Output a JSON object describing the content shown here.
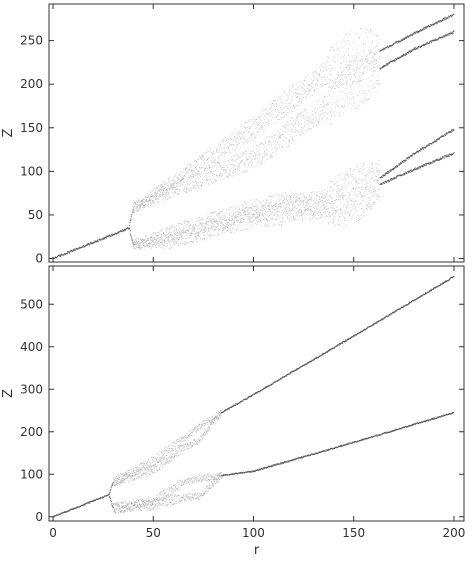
{
  "chart_data": [
    {
      "type": "scatter",
      "title": "",
      "xlabel": "",
      "ylabel": "Z",
      "xlim": [
        -2,
        205
      ],
      "ylim": [
        -4,
        292
      ],
      "x_ticks": [],
      "y_ticks": [
        0,
        50,
        100,
        150,
        200,
        250
      ],
      "y_tick_labels": [
        "0",
        "50",
        "100",
        "150",
        "200",
        "250"
      ],
      "colors": {
        "point": "#555555",
        "cloud": "#8a8a8a",
        "frame": "#333333"
      },
      "series": [
        {
          "curve": [
            [
              0,
              0
            ],
            [
              38,
              35
            ],
            [
              40,
              58
            ],
            [
              60,
              78
            ],
            [
              80,
              97
            ],
            [
              100,
              115
            ],
            [
              120,
              148
            ],
            [
              137,
              175
            ],
            [
              150,
              200
            ],
            [
              163,
              218
            ],
            [
              180,
              240
            ],
            [
              200,
              260
            ]
          ]
        },
        {
          "curve": [
            [
              40,
              58
            ],
            [
              60,
              88
            ],
            [
              80,
              118
            ],
            [
              100,
              150
            ],
            [
              120,
              185
            ],
            [
              140,
              220
            ],
            [
              150,
              232
            ],
            [
              163,
              238
            ],
            [
              180,
              258
            ],
            [
              200,
              280
            ]
          ]
        },
        {
          "curve": [
            [
              38,
              35
            ],
            [
              40,
              16
            ],
            [
              60,
              30
            ],
            [
              80,
              43
            ],
            [
              100,
              55
            ],
            [
              120,
              62
            ],
            [
              137,
              64
            ],
            [
              150,
              75
            ],
            [
              163,
              92
            ],
            [
              180,
              120
            ],
            [
              200,
              148
            ]
          ]
        },
        {
          "curve": [
            [
              40,
              16
            ],
            [
              60,
              20
            ],
            [
              80,
              35
            ],
            [
              100,
              48
            ],
            [
              120,
              56
            ],
            [
              137,
              60
            ],
            [
              150,
              72
            ],
            [
              163,
              85
            ],
            [
              180,
              102
            ],
            [
              200,
              121
            ]
          ]
        }
      ]
    },
    {
      "type": "scatter",
      "title": "",
      "xlabel": "r",
      "ylabel": "Z",
      "xlim": [
        -2,
        205
      ],
      "ylim": [
        -10,
        590
      ],
      "x_ticks": [
        0,
        50,
        100,
        150,
        200
      ],
      "x_tick_labels": [
        "0",
        "50",
        "100",
        "150",
        "200"
      ],
      "y_ticks": [
        0,
        100,
        200,
        300,
        400,
        500
      ],
      "y_tick_labels": [
        "0",
        "100",
        "200",
        "300",
        "400",
        "500"
      ],
      "colors": {
        "point": "#555555",
        "cloud": "#8a8a8a",
        "frame": "#333333"
      },
      "series": [
        {
          "curve": [
            [
              0,
              0
            ],
            [
              28,
              52
            ],
            [
              30,
              82
            ],
            [
              50,
              130
            ],
            [
              64,
              180
            ],
            [
              73,
              212
            ],
            [
              84,
              245
            ],
            [
              100,
              287
            ],
            [
              150,
              425
            ],
            [
              200,
              565
            ]
          ]
        },
        {
          "curve": [
            [
              30,
              82
            ],
            [
              50,
              110
            ],
            [
              64,
              160
            ],
            [
              73,
              180
            ],
            [
              84,
              245
            ]
          ]
        },
        {
          "curve": [
            [
              28,
              52
            ],
            [
              30,
              20
            ],
            [
              50,
              35
            ],
            [
              64,
              78
            ],
            [
              73,
              90
            ],
            [
              84,
              97
            ],
            [
              100,
              107
            ],
            [
              150,
              175
            ],
            [
              200,
              245
            ]
          ]
        },
        {
          "curve": [
            [
              30,
              20
            ],
            [
              50,
              28
            ],
            [
              64,
              45
            ],
            [
              73,
              48
            ],
            [
              84,
              97
            ]
          ]
        }
      ]
    }
  ]
}
